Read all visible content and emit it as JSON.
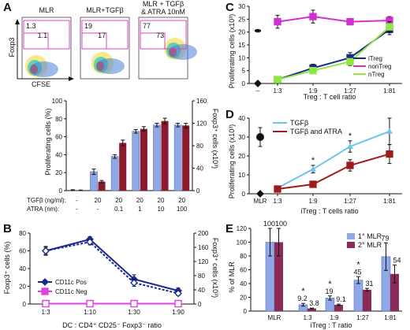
{
  "panels": {
    "A": {
      "label": "A",
      "flow": {
        "ylabel": "Foxp3",
        "xlabel": "CFSE",
        "plots": [
          {
            "title": "MLR",
            "gate_outer": "1.3",
            "gate_inner": "1.1"
          },
          {
            "title": "MLR+TGFβ",
            "gate_outer": "19",
            "gate_inner": "17"
          },
          {
            "title": "MLR + TGFβ\n& ATRA 10nM",
            "gate_outer": "77",
            "gate_inner": "73"
          }
        ]
      },
      "bar_chart": {
        "type": "bar",
        "ylabel_left": "Proliferating cells (%)",
        "ylabel_right": "Foxp3⁺ cells (x10³)",
        "yticks_left": [
          "0",
          "20",
          "40",
          "60",
          "80",
          "100"
        ],
        "yticks_right": [
          "0",
          "40",
          "80",
          "120",
          "160"
        ],
        "ylim_left": [
          0,
          100
        ],
        "ylim_right": [
          0,
          160
        ],
        "row_labels": [
          "TGFβ (ng/ml):",
          "ATRA (nm):"
        ],
        "tgf_values": [
          "-",
          "20",
          "20",
          "20",
          "20",
          "20"
        ],
        "atra_values": [
          "-",
          "-",
          "0.1",
          "1",
          "10",
          "100"
        ],
        "series": [
          {
            "color": "#8fa8e8",
            "values": [
              0.5,
              21,
              38,
              66,
              73,
              73
            ],
            "errors": [
              0.5,
              3,
              2,
              2,
              2,
              2
            ]
          },
          {
            "color": "#8c1a2e",
            "values_right": [
              0.5,
              16,
              85,
              110,
              124,
              116
            ],
            "errors_right": [
              0.5,
              2,
              5,
              4,
              5,
              4
            ]
          }
        ]
      }
    },
    "B": {
      "label": "B",
      "type": "line",
      "ylabel_left": "Foxp3⁺ cells (%)",
      "ylabel_right": "Foxp3⁺ cells (x10³)",
      "xlabel": "DC : CD4⁺ CD25⁻ Foxp3⁻ ratio",
      "categories": [
        "1:3",
        "1:10",
        "1:30",
        "1:90"
      ],
      "yticks_left": [
        "0",
        "20",
        "40",
        "60",
        "80"
      ],
      "yticks_right": [
        "0",
        "40",
        "80",
        "120",
        "160",
        "200"
      ],
      "ylim_left": [
        0,
        80
      ],
      "ylim_right": [
        0,
        200
      ],
      "series": [
        {
          "name": "CD11c Pos",
          "color": "#1a2a8c",
          "marker": "diamond",
          "values": [
            60,
            73,
            28,
            15
          ],
          "errors": [
            5,
            3,
            5,
            3
          ]
        },
        {
          "name": "CD11c Neg",
          "color": "#e040e0",
          "marker": "square",
          "values": [
            0.5,
            0.5,
            0.5,
            0.5
          ],
          "errors": [
            0,
            0,
            0,
            0
          ]
        },
        {
          "name": "",
          "color": "#1a2a8c",
          "marker": "diamond-open",
          "dashed": true,
          "values_right": [
            150,
            175,
            60,
            30
          ],
          "errors_right": [
            10,
            8,
            10,
            6
          ]
        },
        {
          "name": "",
          "color": "#e040e0",
          "marker": "square-open",
          "dashed": true,
          "values_right": [
            1,
            1,
            1,
            1
          ],
          "errors_right": [
            0,
            0,
            0,
            0
          ]
        }
      ]
    },
    "C": {
      "label": "C",
      "type": "line",
      "ylabel": "Proliferating cells (x10³)",
      "xlabel": "Treg : T cell ratio",
      "categories": [
        "–",
        "1:3",
        "1:9",
        "1:27",
        "1:81"
      ],
      "yticks": [
        "0",
        "5",
        "10",
        "15",
        "20",
        "25",
        "30"
      ],
      "ylim": [
        0,
        30
      ],
      "series": [
        {
          "name": "iTreg",
          "color": "#1a2a8c",
          "values": [
            null,
            1.5,
            6,
            10,
            21
          ],
          "errors": [
            0,
            0.8,
            1.5,
            2,
            2
          ]
        },
        {
          "name": "nonTreg",
          "color": "#d030d0",
          "values": [
            null,
            24,
            26,
            24,
            24.5
          ],
          "errors": [
            0,
            2.5,
            2.5,
            1,
            1.5
          ]
        },
        {
          "name": "nTreg",
          "color": "#8ee840",
          "values": [
            null,
            1.5,
            5,
            8.5,
            22
          ],
          "errors": [
            0,
            0.5,
            1,
            1.5,
            2
          ]
        }
      ],
      "points": [
        {
          "category": "–",
          "value": 20.5,
          "error": 0.5,
          "marker": "dash"
        },
        {
          "category": "–",
          "value": 0,
          "error": 0,
          "marker": "diamond"
        }
      ]
    },
    "D": {
      "label": "D",
      "type": "line",
      "ylabel": "Proliferating cells (x10³)",
      "xlabel": "iTreg : T cells ratio",
      "categories": [
        "MLR",
        "1:3",
        "1:9",
        "1:27",
        "1:81"
      ],
      "yticks": [
        "0",
        "10",
        "20",
        "30",
        "40"
      ],
      "ylim": [
        0,
        40
      ],
      "series": [
        {
          "name": "TGFβ",
          "color": "#6ec3ea",
          "values": [
            null,
            3,
            13,
            25,
            33
          ],
          "errors": [
            0,
            0.5,
            2,
            3,
            7
          ]
        },
        {
          "name": "TGFβ and ATRA",
          "color": "#a01a1a",
          "values": [
            null,
            2.5,
            5,
            15,
            21
          ],
          "errors": [
            0,
            0.5,
            1,
            3,
            5
          ]
        }
      ],
      "points": [
        {
          "category": "MLR",
          "value": 30,
          "error": 5,
          "marker": "circle"
        },
        {
          "category": "MLR",
          "value": 0,
          "error": 0,
          "marker": "diamond"
        }
      ],
      "stars": [
        {
          "category": "1:9",
          "text": "*"
        },
        {
          "category": "1:27",
          "text": "*"
        }
      ]
    },
    "E": {
      "label": "E",
      "type": "bar",
      "ylabel": "% of MLR",
      "xlabel": "iTreg : T ratio",
      "categories": [
        "MLR",
        "1:3",
        "1:9",
        "1:27",
        "1:81"
      ],
      "yticks": [
        "0",
        "20",
        "40",
        "60",
        "80",
        "100",
        "120"
      ],
      "ylim": [
        0,
        120
      ],
      "series": [
        {
          "name": "1° MLR",
          "color": "#8fa8e8",
          "values": [
            100,
            9.2,
            19,
            45,
            79
          ],
          "errors": [
            20,
            2,
            3,
            5,
            20
          ],
          "labels": [
            "100",
            "9.2",
            "19",
            "45",
            "79"
          ]
        },
        {
          "name": "2° MLR",
          "color": "#8c2a5a",
          "values": [
            100,
            3.8,
            9.1,
            31,
            54
          ],
          "errors": [
            20,
            0.5,
            1,
            2,
            13
          ],
          "labels": [
            "100",
            "3.8",
            "9.1",
            "31",
            "54"
          ]
        }
      ],
      "stars": [
        {
          "category": "1:3",
          "text": "*"
        },
        {
          "category": "1:9",
          "text": "*"
        },
        {
          "category": "1:27",
          "text": "*"
        }
      ]
    }
  }
}
